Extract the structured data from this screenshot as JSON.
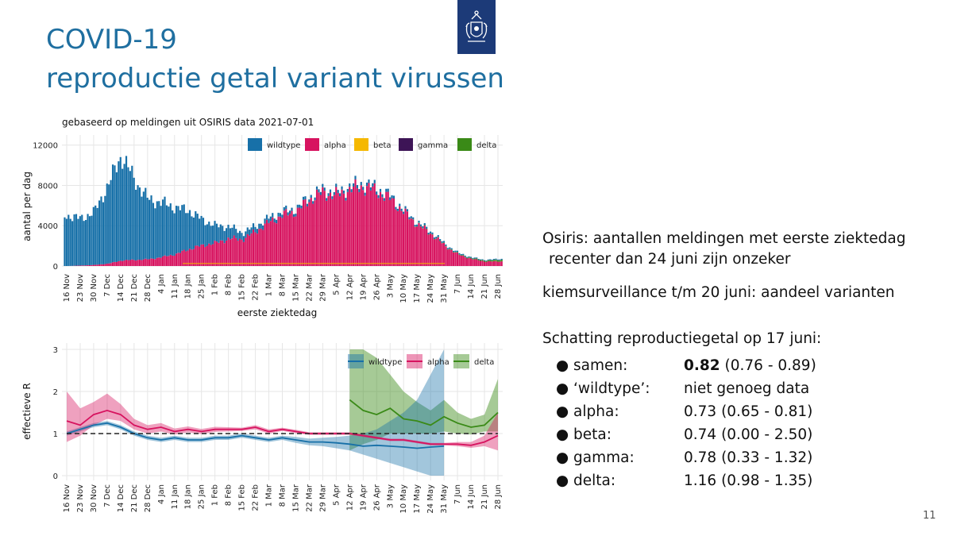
{
  "slide": {
    "title_line1": "COVID-19",
    "title_line2": "reproductie getal variant virussen",
    "page_number": "11",
    "accent_color": "#1f6fa0",
    "logo_color": "#1c3a78",
    "logo": "rijksoverheid-logo"
  },
  "info": {
    "osiris_line1": "Osiris: aantallen meldingen met eerste ziektedag",
    "osiris_line2": "recenter dan 24 juni zijn onzeker",
    "kiem": "kiemsurveillance t/m 20 juni: aandeel varianten",
    "schatting": "Schatting reproductiegetal op 17 juni:",
    "estimates": [
      {
        "label": "samen:",
        "value_main": "0.82",
        "value_rest": " (0.76 - 0.89)",
        "bold": true
      },
      {
        "label": "‘wildtype’:",
        "value_main": "",
        "value_rest": "niet genoeg data",
        "bold": false
      },
      {
        "label": "alpha:",
        "value_main": "",
        "value_rest": "0.73 (0.65 - 0.81)",
        "bold": false
      },
      {
        "label": "beta:",
        "value_main": "",
        "value_rest": "0.74 (0.00 - 2.50)",
        "bold": false
      },
      {
        "label": "gamma:",
        "value_main": "",
        "value_rest": "0.78 (0.33 - 1.32)",
        "bold": false
      },
      {
        "label": "delta:",
        "value_main": "",
        "value_rest": "1.16 (0.98 - 1.35)",
        "bold": false
      }
    ]
  },
  "chart_data": [
    {
      "type": "bar",
      "subtitle": "gebaseerd op meldingen uit OSIRIS data 2021-07-01",
      "xlabel": "eerste ziektedag",
      "ylabel": "aantal per dag",
      "ylim": [
        0,
        13000
      ],
      "yticks": [
        0,
        4000,
        8000,
        12000
      ],
      "xticks": [
        "16 Nov",
        "23 Nov",
        "30 Nov",
        "7 Dec",
        "14 Dec",
        "21 Dec",
        "28 Dec",
        "4 Jan",
        "11 Jan",
        "18 Jan",
        "25 Jan",
        "1 Feb",
        "8 Feb",
        "15 Feb",
        "22 Feb",
        "1 Mar",
        "8 Mar",
        "15 Mar",
        "22 Mar",
        "29 Mar",
        "5 Apr",
        "12 Apr",
        "19 Apr",
        "26 Apr",
        "3 May",
        "10 May",
        "17 May",
        "24 May",
        "31 May",
        "7 Jun",
        "14 Jun",
        "21 Jun",
        "28 Jun"
      ],
      "legend_position": "top-right",
      "grid": true,
      "colors": {
        "wildtype": "#1770a8",
        "alpha": "#d7135f",
        "beta": "#f5b800",
        "gamma": "#3d1456",
        "delta": "#3a8a17"
      },
      "series_names": [
        "wildtype",
        "alpha",
        "beta",
        "gamma",
        "delta"
      ],
      "weekly_total": [
        5000,
        4700,
        5400,
        8000,
        11000,
        8500,
        6600,
        6300,
        5800,
        5500,
        4600,
        4000,
        3900,
        3300,
        4000,
        4800,
        5400,
        5700,
        6900,
        7600,
        7300,
        7900,
        8200,
        7700,
        6900,
        5500,
        4300,
        3400,
        2200,
        1300,
        850,
        600,
        700
      ],
      "weekly_alpha_share": [
        0.0,
        0.01,
        0.02,
        0.03,
        0.05,
        0.07,
        0.1,
        0.14,
        0.2,
        0.3,
        0.44,
        0.57,
        0.7,
        0.8,
        0.87,
        0.91,
        0.94,
        0.95,
        0.96,
        0.96,
        0.96,
        0.96,
        0.96,
        0.96,
        0.96,
        0.96,
        0.95,
        0.94,
        0.92,
        0.88,
        0.82,
        0.75,
        0.65
      ],
      "weekly_delta_share": [
        0,
        0,
        0,
        0,
        0,
        0,
        0,
        0,
        0,
        0,
        0,
        0,
        0,
        0,
        0,
        0,
        0,
        0,
        0,
        0,
        0,
        0,
        0,
        0,
        0,
        0,
        0.01,
        0.01,
        0.02,
        0.04,
        0.08,
        0.14,
        0.22
      ]
    },
    {
      "type": "line",
      "ylabel": "effectieve R",
      "ylim": [
        0,
        3
      ],
      "yticks": [
        0,
        1,
        2,
        3
      ],
      "reference_line": 1,
      "xticks": [
        "16 Nov",
        "23 Nov",
        "30 Nov",
        "7 Dec",
        "14 Dec",
        "21 Dec",
        "28 Dec",
        "4 Jan",
        "11 Jan",
        "18 Jan",
        "25 Jan",
        "1 Feb",
        "8 Feb",
        "15 Feb",
        "22 Feb",
        "1 Mar",
        "8 Mar",
        "15 Mar",
        "22 Mar",
        "29 Mar",
        "5 Apr",
        "12 Apr",
        "19 Apr",
        "26 Apr",
        "3 May",
        "10 May",
        "17 May",
        "24 May",
        "31 May",
        "7 Jun",
        "14 Jun",
        "21 Jun",
        "28 Jun"
      ],
      "legend_position": "top-right",
      "grid": true,
      "series": [
        {
          "name": "wildtype",
          "color": "#1770a8",
          "start_index": 0,
          "values": [
            1.0,
            1.1,
            1.2,
            1.25,
            1.15,
            1.0,
            0.9,
            0.85,
            0.9,
            0.85,
            0.85,
            0.9,
            0.9,
            0.95,
            0.9,
            0.85,
            0.9,
            0.85,
            0.8,
            0.8,
            0.78,
            0.75,
            0.7,
            0.72,
            0.7,
            0.68,
            0.65,
            0.68,
            0.7
          ],
          "lower": [
            0.95,
            1.05,
            1.15,
            1.2,
            1.1,
            0.95,
            0.85,
            0.8,
            0.85,
            0.8,
            0.8,
            0.85,
            0.85,
            0.9,
            0.85,
            0.8,
            0.85,
            0.78,
            0.72,
            0.7,
            0.65,
            0.6,
            0.5,
            0.4,
            0.3,
            0.2,
            0.1,
            0.0,
            0.0
          ],
          "upper": [
            1.05,
            1.15,
            1.25,
            1.3,
            1.2,
            1.05,
            0.95,
            0.9,
            0.95,
            0.9,
            0.9,
            0.95,
            0.95,
            1.0,
            0.95,
            0.9,
            0.95,
            0.92,
            0.88,
            0.9,
            0.92,
            0.95,
            1.0,
            1.1,
            1.3,
            1.5,
            1.8,
            2.4,
            3.0
          ]
        },
        {
          "name": "alpha",
          "color": "#d7135f",
          "start_index": 0,
          "values": [
            1.3,
            1.2,
            1.45,
            1.55,
            1.45,
            1.2,
            1.1,
            1.15,
            1.05,
            1.1,
            1.05,
            1.1,
            1.1,
            1.1,
            1.15,
            1.05,
            1.1,
            1.05,
            1.0,
            1.0,
            1.0,
            1.0,
            0.95,
            0.9,
            0.85,
            0.85,
            0.8,
            0.75,
            0.75,
            0.75,
            0.72,
            0.8,
            0.95
          ],
          "lower": [
            0.8,
            0.95,
            1.2,
            1.35,
            1.3,
            1.1,
            1.0,
            1.05,
            0.98,
            1.03,
            0.99,
            1.04,
            1.05,
            1.06,
            1.1,
            1.0,
            1.06,
            1.01,
            0.97,
            0.97,
            0.97,
            0.97,
            0.92,
            0.87,
            0.82,
            0.82,
            0.77,
            0.72,
            0.72,
            0.7,
            0.66,
            0.7,
            0.6
          ],
          "upper": [
            2.0,
            1.6,
            1.75,
            1.95,
            1.7,
            1.35,
            1.2,
            1.25,
            1.12,
            1.17,
            1.11,
            1.16,
            1.15,
            1.14,
            1.2,
            1.1,
            1.14,
            1.09,
            1.03,
            1.03,
            1.03,
            1.03,
            0.98,
            0.93,
            0.88,
            0.88,
            0.83,
            0.78,
            0.78,
            0.8,
            0.8,
            0.95,
            1.5
          ]
        },
        {
          "name": "delta",
          "color": "#3a8a17",
          "start_index": 21,
          "values": [
            1.8,
            1.55,
            1.45,
            1.6,
            1.35,
            1.3,
            1.2,
            1.4,
            1.25,
            1.15,
            1.2,
            1.5
          ],
          "lower": [
            0.6,
            0.75,
            0.85,
            1.0,
            1.0,
            1.0,
            1.0,
            1.05,
            1.0,
            0.98,
            1.05,
            1.05
          ],
          "upper": [
            3.0,
            3.0,
            2.8,
            2.4,
            2.0,
            1.75,
            1.55,
            1.8,
            1.5,
            1.35,
            1.45,
            2.3
          ]
        }
      ]
    }
  ]
}
